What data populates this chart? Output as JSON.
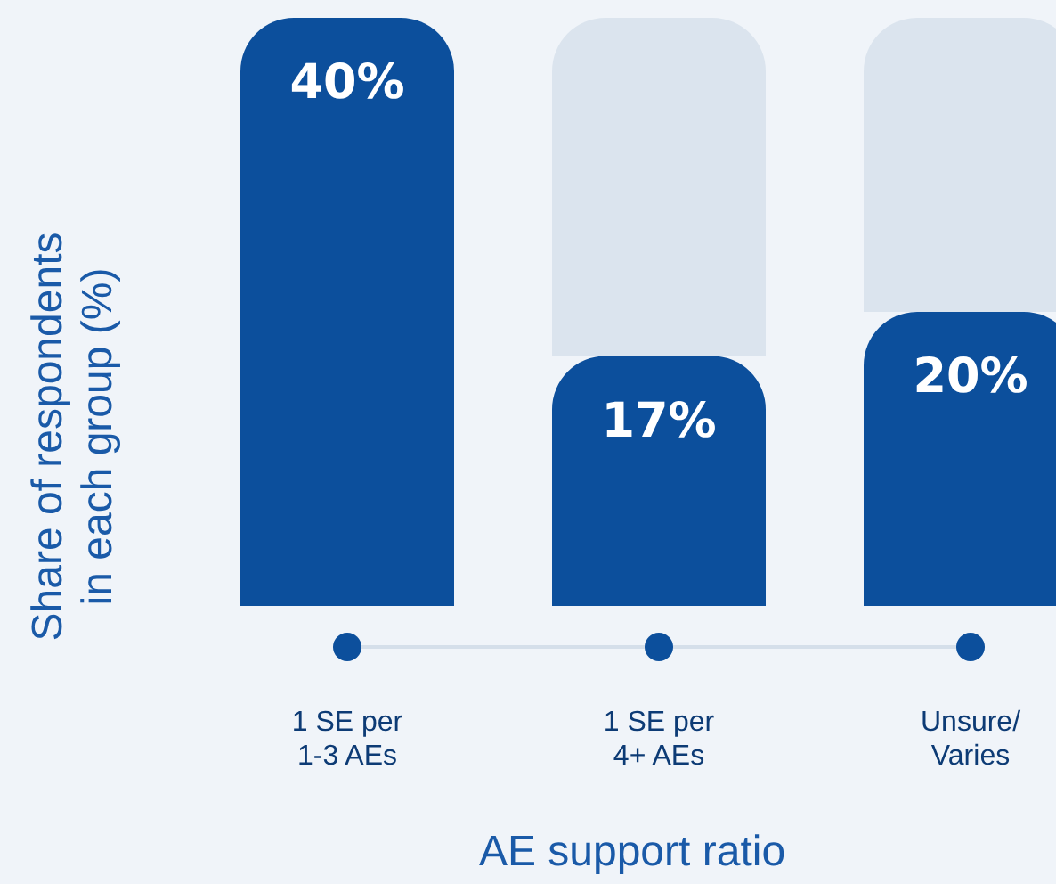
{
  "chart_data": {
    "type": "bar",
    "xlabel": "AE support ratio",
    "ylabel": "Share of respondents in each group (%)",
    "categories": [
      "1 SE per\n1-3 AEs",
      "1 SE per\n4+ AEs",
      "Unsure/\nVaries"
    ],
    "ylim": [
      0,
      40
    ],
    "stacked": true,
    "series": [
      {
        "color": "#0c4f9c",
        "values": [
          40,
          17,
          20
        ],
        "value_labels": [
          "40%",
          "17%",
          "20%"
        ]
      },
      {
        "color": "#dbe4ee",
        "values": [
          null,
          23,
          20
        ]
      }
    ]
  }
}
